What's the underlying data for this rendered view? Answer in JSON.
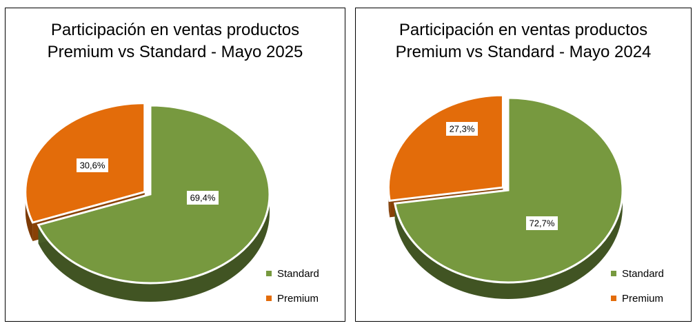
{
  "chart_data": [
    {
      "type": "pie",
      "title_lines": [
        "Participación en ventas productos",
        "Premium vs Standard - Mayo 2025"
      ],
      "series": [
        {
          "name": "Standard",
          "value": 69.4,
          "label": "69,4%",
          "color": "#77993f"
        },
        {
          "name": "Premium",
          "value": 30.6,
          "label": "30,6%",
          "color": "#e36c0a"
        }
      ],
      "legend_position": "bottom-right",
      "legend": [
        "Standard",
        "Premium"
      ],
      "exploded": "Premium"
    },
    {
      "type": "pie",
      "title_lines": [
        "Participación en ventas productos",
        "Premium vs Standard - Mayo 2024"
      ],
      "series": [
        {
          "name": "Standard",
          "value": 72.7,
          "label": "72,7%",
          "color": "#77993f"
        },
        {
          "name": "Premium",
          "value": 27.3,
          "label": "27,3%",
          "color": "#e36c0a"
        }
      ],
      "legend_position": "bottom-right",
      "legend": [
        "Standard",
        "Premium"
      ],
      "exploded": "Premium"
    }
  ]
}
